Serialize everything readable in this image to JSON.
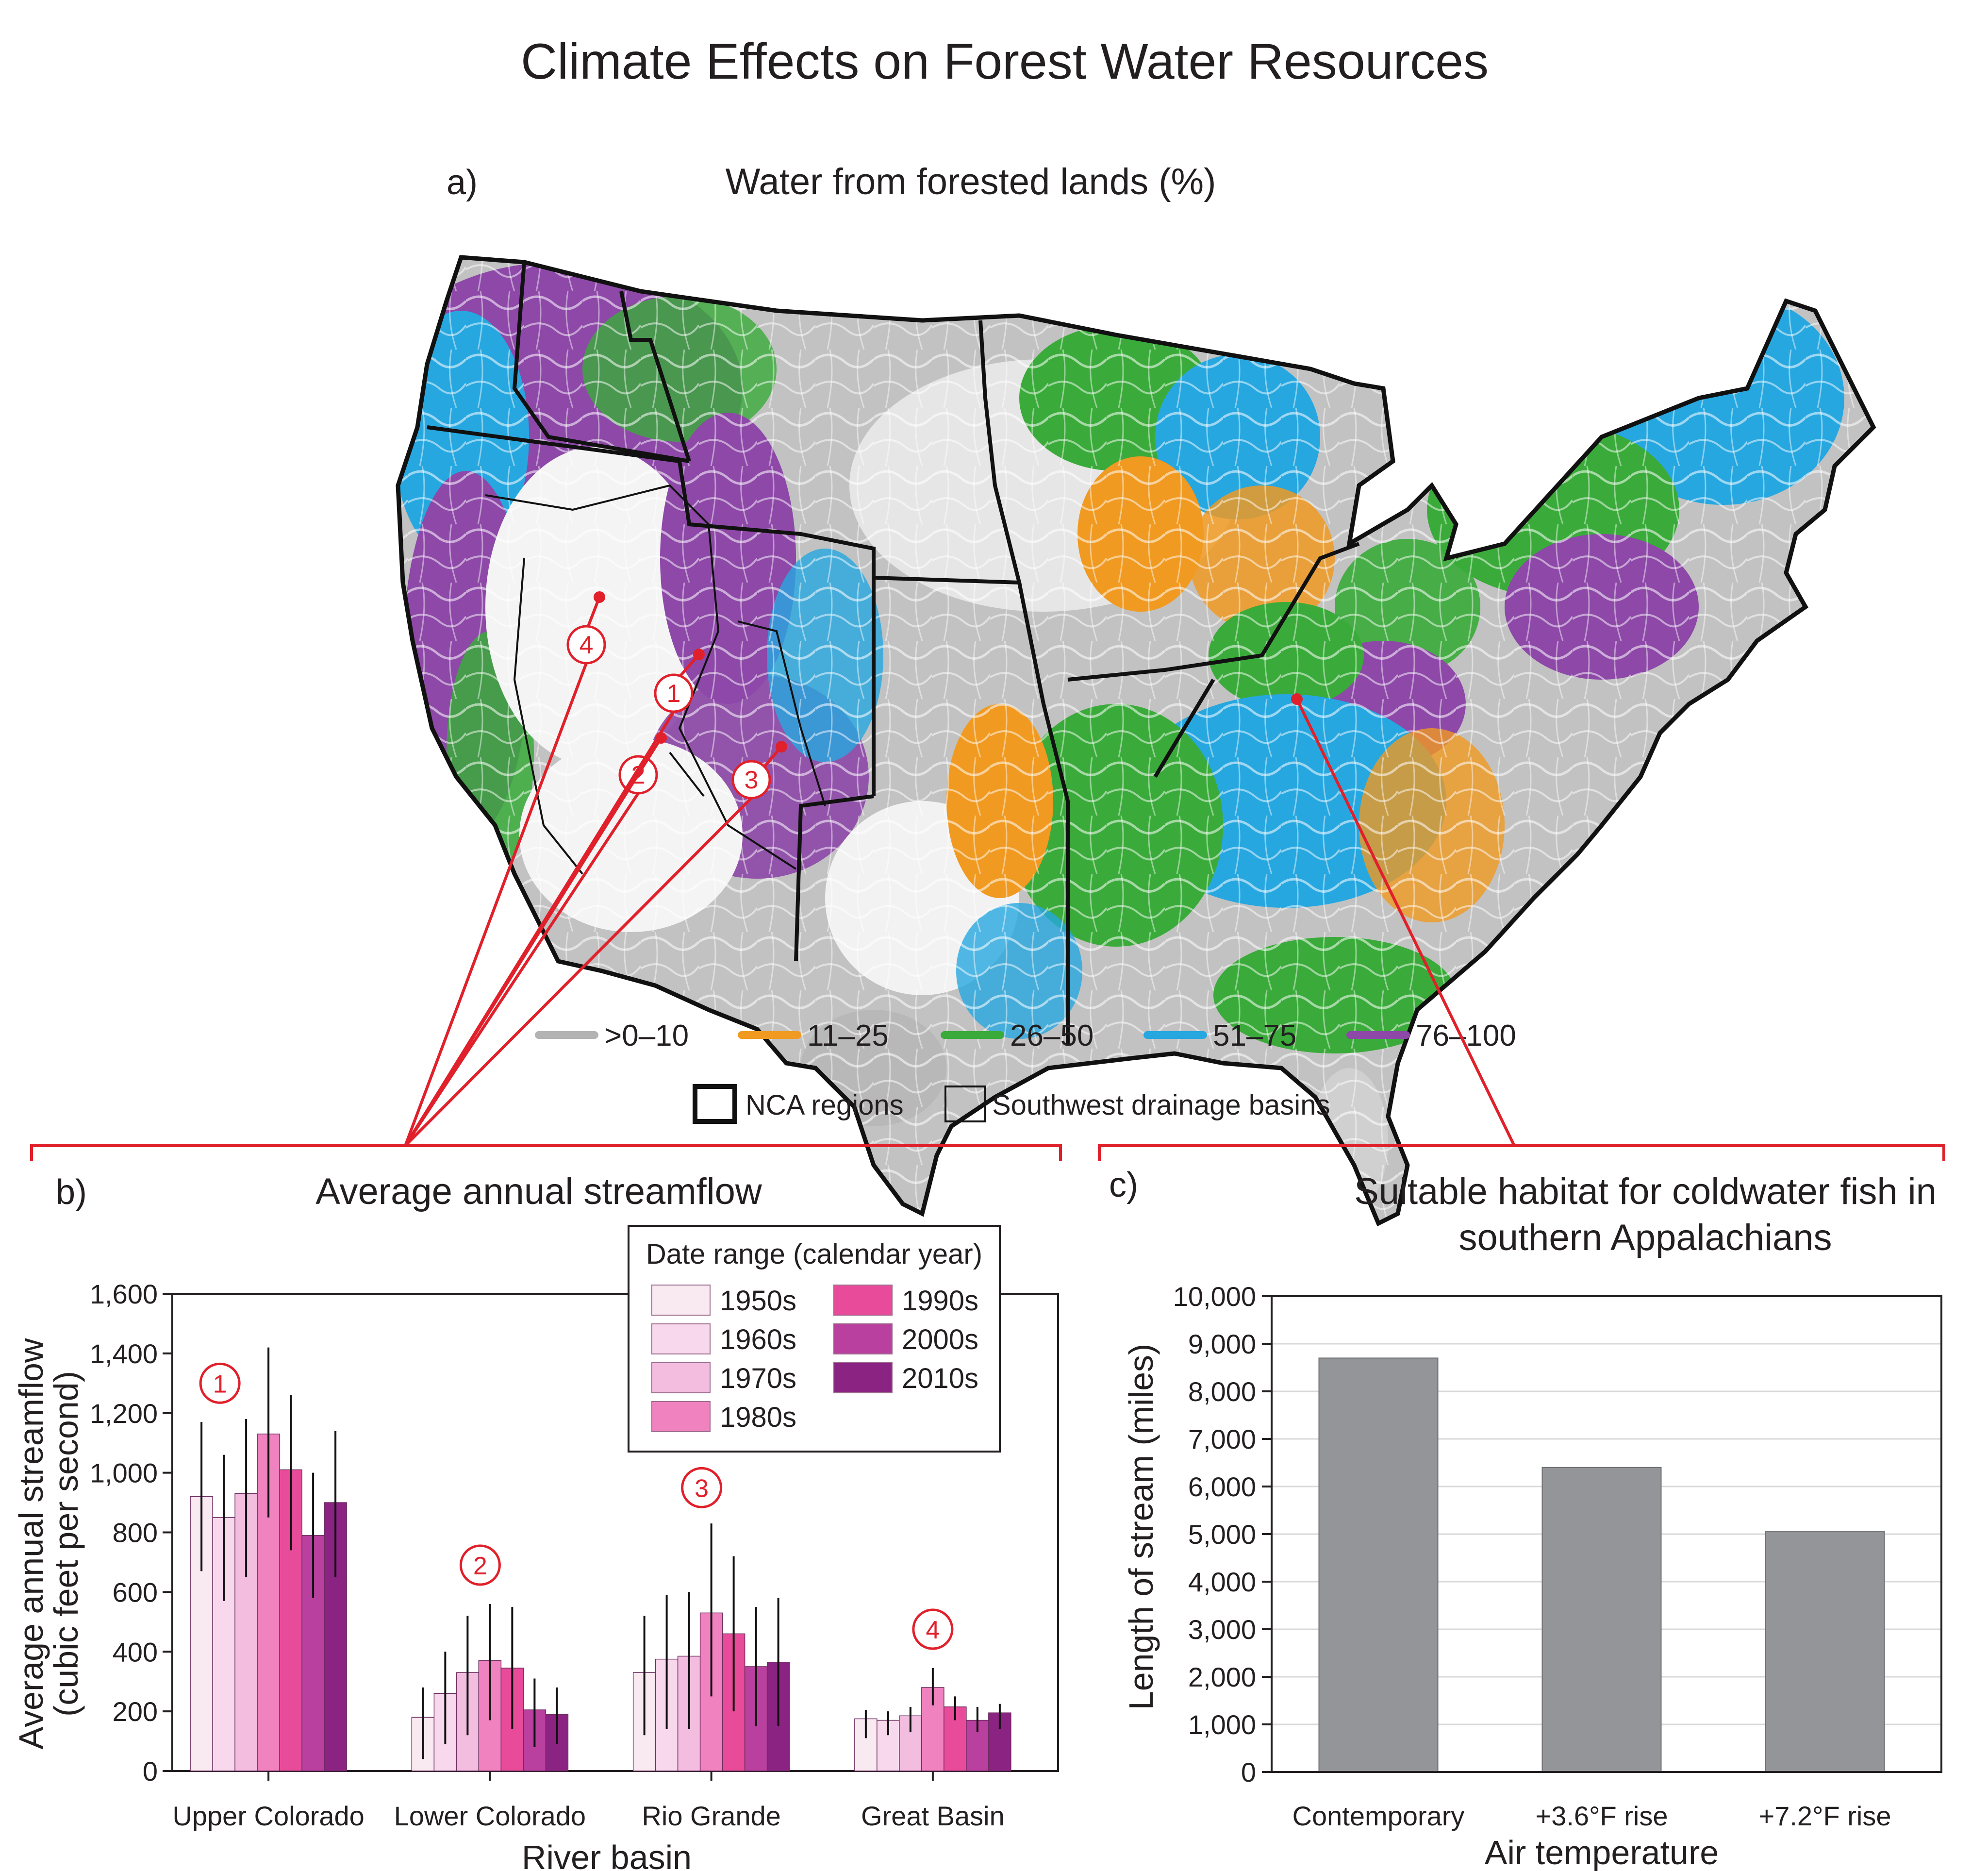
{
  "figure": {
    "title": "Climate Effects on Forest Water Resources"
  },
  "map": {
    "tag": "a)",
    "title": "Water from forested lands (%)",
    "legend": [
      {
        "label": ">0–10",
        "color": "#b3b3b3"
      },
      {
        "label": "11–25",
        "color": "#f09a22"
      },
      {
        "label": "26–50",
        "color": "#3aab3a"
      },
      {
        "label": "51–75",
        "color": "#27a7e0"
      },
      {
        "label": "76–100",
        "color": "#8d48a8"
      }
    ],
    "boundary_legend": [
      {
        "label": "NCA regions",
        "style": "thick"
      },
      {
        "label": "Southwest drainage basins",
        "style": "thin"
      }
    ],
    "markers": [
      "1",
      "2",
      "3",
      "4"
    ],
    "accent_color": "#e0202a"
  },
  "chart_data": [
    {
      "type": "bar",
      "tag": "b)",
      "title": "Average annual streamflow",
      "xlabel": "River basin",
      "ylabel_lines": [
        "Average annual streamflow",
        "(cubic feet per second)"
      ],
      "ylim": [
        0,
        1600
      ],
      "yticks": [
        "0",
        "200",
        "400",
        "600",
        "800",
        "1,000",
        "1,200",
        "1,400",
        "1,600"
      ],
      "categories": [
        "Upper Colorado",
        "Lower Colorado",
        "Rio Grande",
        "Great Basin"
      ],
      "category_markers": [
        "1",
        "2",
        "3",
        "4"
      ],
      "legend_title": "Date range (calendar year)",
      "series": [
        {
          "name": "1950s",
          "color": "#f9e9f1",
          "values": [
            920,
            180,
            330,
            175
          ],
          "err_low": [
            670,
            40,
            120,
            110
          ],
          "err_high": [
            1170,
            280,
            520,
            205
          ]
        },
        {
          "name": "1960s",
          "color": "#f7d8ec",
          "values": [
            850,
            260,
            375,
            170
          ],
          "err_low": [
            570,
            90,
            140,
            120
          ],
          "err_high": [
            1060,
            400,
            590,
            200
          ]
        },
        {
          "name": "1970s",
          "color": "#f3bde0",
          "values": [
            930,
            330,
            385,
            185
          ],
          "err_low": [
            650,
            120,
            140,
            130
          ],
          "err_high": [
            1180,
            520,
            600,
            215
          ]
        },
        {
          "name": "1980s",
          "color": "#f082c0",
          "values": [
            1130,
            370,
            530,
            280
          ],
          "err_low": [
            850,
            170,
            250,
            220
          ],
          "err_high": [
            1420,
            560,
            830,
            345
          ]
        },
        {
          "name": "1990s",
          "color": "#e84b9a",
          "values": [
            1010,
            345,
            460,
            215
          ],
          "err_low": [
            740,
            140,
            200,
            170
          ],
          "err_high": [
            1260,
            550,
            720,
            250
          ]
        },
        {
          "name": "2000s",
          "color": "#b9409e",
          "values": [
            790,
            205,
            350,
            170
          ],
          "err_low": [
            580,
            80,
            150,
            130
          ],
          "err_high": [
            1000,
            310,
            550,
            215
          ]
        },
        {
          "name": "2010s",
          "color": "#8a2382",
          "values": [
            900,
            190,
            365,
            195
          ],
          "err_low": [
            650,
            90,
            150,
            140
          ],
          "err_high": [
            1140,
            280,
            580,
            225
          ]
        }
      ]
    },
    {
      "type": "bar",
      "tag": "c)",
      "title_lines": [
        "Suitable habitat for coldwater fish in",
        "southern Appalachians"
      ],
      "xlabel": "Air temperature",
      "ylabel": "Length of stream (miles)",
      "ylim": [
        0,
        10000
      ],
      "yticks": [
        "0",
        "1,000",
        "2,000",
        "3,000",
        "4,000",
        "5,000",
        "6,000",
        "7,000",
        "8,000",
        "9,000",
        "10,000"
      ],
      "grid": true,
      "categories": [
        "Contemporary",
        "+3.6°F rise",
        "+7.2°F rise"
      ],
      "values": [
        8700,
        6400,
        5050
      ],
      "bar_color": "#939598"
    }
  ]
}
